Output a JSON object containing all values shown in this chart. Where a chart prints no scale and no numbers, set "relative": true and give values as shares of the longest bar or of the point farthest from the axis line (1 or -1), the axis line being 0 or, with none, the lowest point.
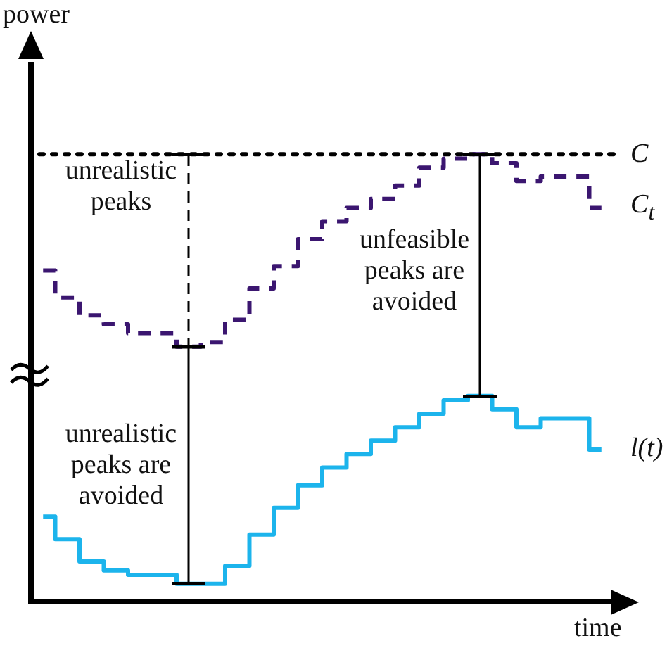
{
  "chart_data": {
    "type": "step",
    "relative": true,
    "xlabel": "time",
    "ylabel": "power",
    "categories": [
      null,
      null,
      null,
      null,
      null,
      null,
      null,
      null,
      null,
      null,
      null,
      null,
      null,
      null,
      null,
      null,
      null,
      null,
      null,
      null,
      null,
      null,
      null,
      null
    ],
    "series": [
      {
        "name": "C$_{t}$",
        "color": "#3b1670",
        "line_style": "dashed",
        "values": [
          0.74,
          0.68,
          0.64,
          0.62,
          0.6,
          0.6,
          0.57,
          0.58,
          0.63,
          0.7,
          0.75,
          0.81,
          0.85,
          0.88,
          0.9,
          0.93,
          0.97,
          0.99,
          1,
          0.98,
          0.94,
          0.95,
          0.95,
          0.88
        ]
      },
      {
        "name": "l(t)",
        "color": "#1cb4ec",
        "line_style": "solid",
        "values": [
          0.19,
          0.14,
          0.09,
          0.07,
          0.06,
          0.06,
          0.04,
          0.04,
          0.08,
          0.15,
          0.21,
          0.26,
          0.3,
          0.33,
          0.36,
          0.39,
          0.42,
          0.45,
          0.46,
          0.43,
          0.39,
          0.41,
          0.41,
          0.34
        ]
      }
    ],
    "ref_lines": [
      {
        "axis": "y",
        "value": 1,
        "label": "C",
        "line_style": "dotted",
        "color": "#000000"
      }
    ],
    "annotations": [
      "unrealistic peaks",
      "unfeasible peaks are avoided",
      "unrealistic peaks are avoided"
    ],
    "grid": false,
    "legend": false,
    "marker": "none"
  }
}
